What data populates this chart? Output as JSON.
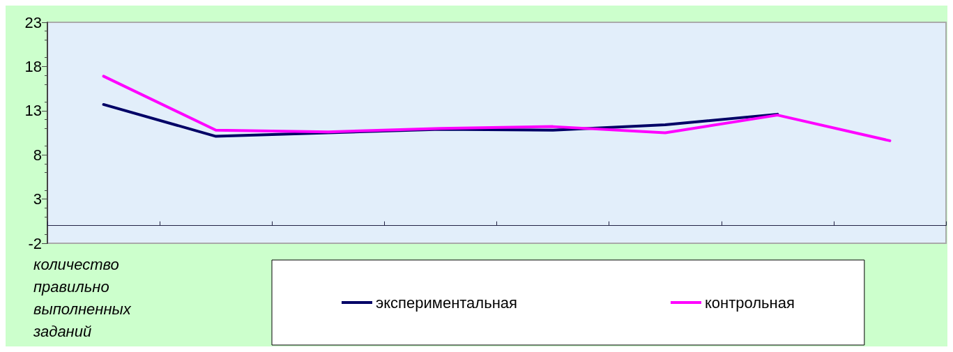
{
  "chart_data": {
    "type": "line",
    "xlabel": "количество правильно выполненных заданий",
    "categories": [
      null,
      null,
      null,
      null,
      null,
      null,
      null,
      null
    ],
    "series": [
      {
        "name": "экспериментальная",
        "color": "#000066",
        "values": [
          13.7,
          10.1,
          10.5,
          10.9,
          10.8,
          11.4,
          12.6,
          null
        ]
      },
      {
        "name": "контрольная",
        "color": "#ff00ff",
        "values": [
          16.9,
          10.8,
          10.6,
          11.0,
          11.2,
          10.5,
          12.5,
          9.6
        ]
      }
    ],
    "ylim": [
      -2,
      23
    ],
    "yticks": [
      -2,
      3,
      8,
      13,
      18,
      23
    ],
    "grid": false,
    "legend": "bottom",
    "marker": "none",
    "line_style": "solid"
  }
}
